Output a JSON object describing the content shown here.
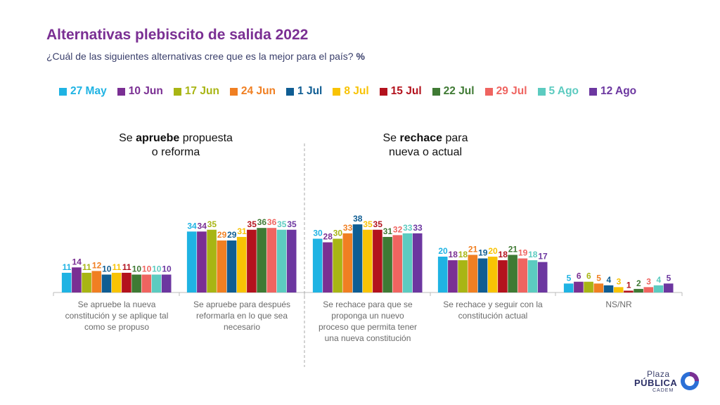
{
  "title": "Alternativas plebiscito de salida 2022",
  "subtitle": {
    "text": "¿Cuál de las siguientes alternativas cree que es la mejor para el país?",
    "unit": "%"
  },
  "headers": {
    "approve": {
      "pre": "Se ",
      "em": "apruebe",
      "post": " propuesta",
      "line2": "o reforma"
    },
    "reject": {
      "pre": "Se ",
      "em": "rechace",
      "post": " para",
      "line2": "nueva o actual"
    }
  },
  "logo": {
    "line1": "Plaza",
    "line2": "PÚBLICA",
    "line3": "CADEM"
  },
  "colors": {
    "title": "#7a2f93",
    "series": [
      "#1fb3e3",
      "#7a2f93",
      "#a8b514",
      "#f07f22",
      "#0f5d93",
      "#f8c304",
      "#b3121d",
      "#3f7a34",
      "#ef6460",
      "#5ccbc0",
      "#6c37a0"
    ]
  },
  "chart_data": {
    "type": "bar",
    "categories": [
      "Se apruebe la nueva constitución y se aplique tal como se propuso",
      "Se apruebe para después reformarla en lo que sea necesario",
      "Se rechace para que se proponga un nuevo proceso que permita tener una nueva constitución",
      "Se rechace y seguir con la constitución actual",
      "NS/NR"
    ],
    "category_lines": [
      [
        "Se apruebe la nueva",
        "constitución y se aplique tal",
        "como se propuso"
      ],
      [
        "Se apruebe para después",
        "reformarla en lo que sea",
        "necesario"
      ],
      [
        "Se rechace para que se",
        "proponga un nuevo",
        "proceso que permita tener",
        "una nueva constitución"
      ],
      [
        "Se rechace y seguir con la",
        "constitución actual"
      ],
      [
        "NS/NR"
      ]
    ],
    "series": [
      {
        "name": "27 May",
        "values": [
          11,
          34,
          30,
          20,
          5
        ]
      },
      {
        "name": "10 Jun",
        "values": [
          14,
          34,
          28,
          18,
          6
        ]
      },
      {
        "name": "17 Jun",
        "values": [
          11,
          35,
          30,
          18,
          6
        ]
      },
      {
        "name": "24 Jun",
        "values": [
          12,
          29,
          33,
          21,
          5
        ]
      },
      {
        "name": "1 Jul",
        "values": [
          10,
          29,
          38,
          19,
          4
        ]
      },
      {
        "name": "8 Jul",
        "values": [
          11,
          31,
          35,
          20,
          3
        ]
      },
      {
        "name": "15 Jul",
        "values": [
          11,
          35,
          35,
          18,
          1
        ]
      },
      {
        "name": "22 Jul",
        "values": [
          10,
          36,
          31,
          21,
          2
        ]
      },
      {
        "name": "29 Jul",
        "values": [
          10,
          36,
          32,
          19,
          3
        ]
      },
      {
        "name": "5 Ago",
        "values": [
          10,
          35,
          33,
          18,
          4
        ]
      },
      {
        "name": "12 Ago",
        "values": [
          10,
          35,
          33,
          17,
          5
        ]
      }
    ],
    "ylim": [
      0,
      40
    ],
    "grid": false,
    "legend": "top"
  }
}
